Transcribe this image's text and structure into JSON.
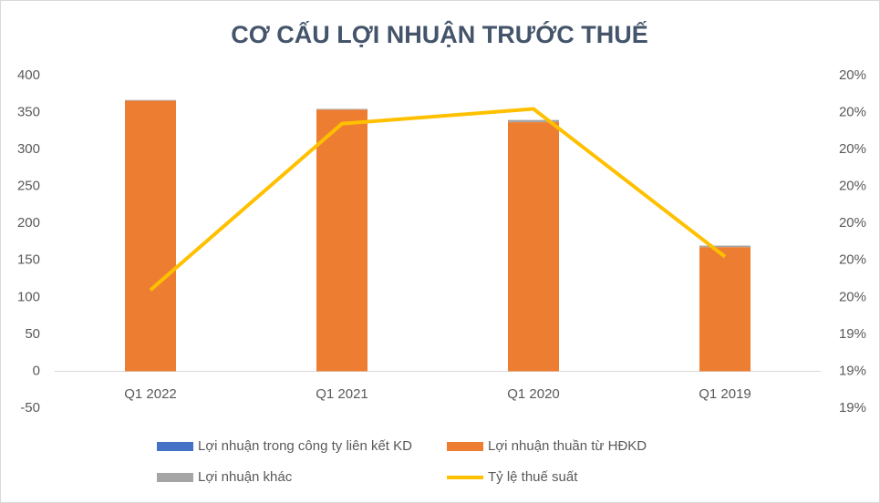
{
  "chart_data": {
    "type": "bar",
    "title": "CƠ CẤU LỢI NHUẬN TRƯỚC THUẾ",
    "categories": [
      "Q1 2022",
      "Q1 2021",
      "Q1 2020",
      "Q1 2019"
    ],
    "stacked": true,
    "series": [
      {
        "name": "Lợi nhuận trong công ty liên kết KD",
        "color": "#4472c4",
        "type": "bar",
        "values": [
          0,
          0,
          0,
          0
        ]
      },
      {
        "name": "Lợi nhuận thuần từ HĐKD",
        "color": "#ed7d31",
        "type": "bar",
        "values": [
          366,
          354,
          337,
          168
        ]
      },
      {
        "name": "Lợi nhuận khác",
        "color": "#a5a5a5",
        "type": "bar",
        "values": [
          1,
          1,
          3,
          2
        ]
      },
      {
        "name": "Tỷ lệ thuế suất",
        "color": "#ffc000",
        "type": "line",
        "axis": "y2",
        "values": [
          19.52,
          19.97,
          20.01,
          19.61
        ]
      }
    ],
    "ylim": [
      -50,
      400
    ],
    "yticks": [
      -50,
      0,
      50,
      100,
      150,
      200,
      250,
      300,
      350,
      400
    ],
    "y2lim": [
      19.2,
      20.1
    ],
    "y2ticks": [
      {
        "value": 19.2,
        "label": "19%"
      },
      {
        "value": 19.3,
        "label": "19%"
      },
      {
        "value": 19.4,
        "label": "19%"
      },
      {
        "value": 19.5,
        "label": "20%"
      },
      {
        "value": 19.6,
        "label": "20%"
      },
      {
        "value": 19.7,
        "label": "20%"
      },
      {
        "value": 19.8,
        "label": "20%"
      },
      {
        "value": 19.9,
        "label": "20%"
      },
      {
        "value": 20.0,
        "label": "20%"
      },
      {
        "value": 20.1,
        "label": "20%"
      }
    ],
    "legend": "bottom"
  }
}
